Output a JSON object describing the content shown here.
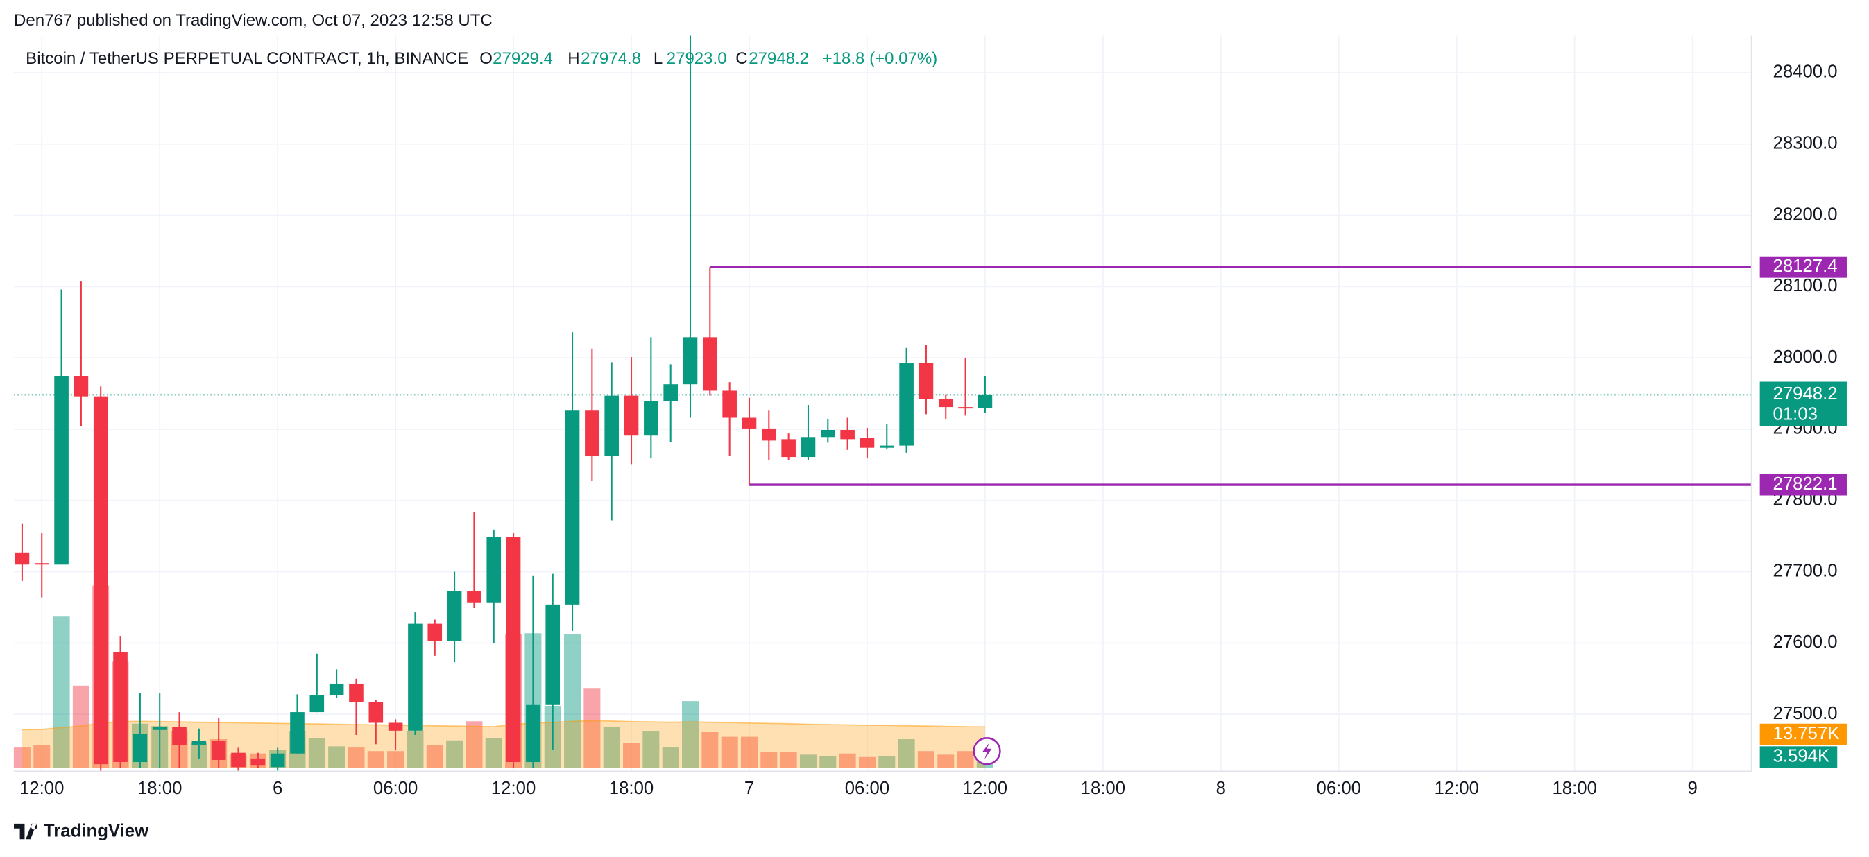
{
  "page": {
    "header": "Den767 published on TradingView.com, Oct 07, 2023 12:58 UTC",
    "footer": "TradingView"
  },
  "chart_data": {
    "type": "candlestick",
    "legend": {
      "symbol": "Bitcoin / TetherUS PERPETUAL CONTRACT, 1h, BINANCE",
      "items": [
        {
          "key": "O",
          "text": "27929.4"
        },
        {
          "key": "H",
          "text": "27974.8"
        },
        {
          "key": "L",
          "text": "27923.0"
        },
        {
          "key": "C",
          "text": "27948.2"
        }
      ],
      "change": "+18.8 (+0.07%)"
    },
    "up_color": "#089981",
    "down_color": "#f23645",
    "open": [
      27727,
      27712,
      27710,
      27974,
      27946,
      27587,
      27433,
      27478,
      27482,
      27457,
      27463,
      27446,
      27438,
      27426,
      27445,
      27503,
      27527,
      27543,
      27517,
      27488,
      27477,
      27627,
      27603,
      27673,
      27657,
      27749,
      27433,
      27513,
      27654,
      27926,
      27862,
      27947,
      27891,
      27939,
      27963,
      28029,
      27954,
      27916,
      27901,
      27886,
      27861,
      27889,
      27899,
      27888,
      27874,
      27877,
      27993,
      27942,
      27931,
      27929.4
    ],
    "high": [
      27767,
      27755,
      28096,
      28108,
      27960,
      27610,
      27530,
      27530,
      27503,
      27480,
      27495,
      27453,
      27446,
      27453,
      27528,
      27585,
      27563,
      27550,
      27520,
      27493,
      27643,
      27633,
      27700,
      27784,
      27759,
      27755,
      27694,
      27697,
      28036,
      28013,
      27994,
      28001,
      28029,
      27991,
      28452,
      28127.4,
      27966,
      27944,
      27926,
      27894,
      27934,
      27914,
      27916,
      27902,
      27907,
      28014,
      28018,
      27949,
      28000,
      27974.8
    ],
    "low": [
      27687,
      27664,
      27710,
      27904,
      27420,
      27425,
      27425,
      27425,
      27425,
      27438,
      27425,
      27420,
      27425,
      27421,
      27445,
      27503,
      27523,
      27471,
      27458,
      27450,
      27471,
      27582,
      27573,
      27649,
      27600,
      27425,
      27425,
      27450,
      27617,
      27827,
      27772,
      27851,
      27859,
      27882,
      27916,
      27947,
      27862,
      27822.1,
      27857,
      27857,
      27857,
      27881,
      27871,
      27859,
      27872,
      27867,
      27921,
      27914,
      27919,
      27923
    ],
    "close": [
      27710,
      27710,
      27974,
      27946,
      27430,
      27433,
      27472,
      27482,
      27457,
      27463,
      27436,
      27426,
      27428,
      27445,
      27503,
      27527,
      27543,
      27517,
      27488,
      27477,
      27627,
      27603,
      27673,
      27657,
      27749,
      27433,
      27513,
      27654,
      27926,
      27862,
      27947,
      27891,
      27939,
      27963,
      28029,
      27954,
      27916,
      27901,
      27884,
      27861,
      27889,
      27899,
      27886,
      27874,
      27877,
      27993,
      27942,
      27931,
      27929,
      27948.2
    ],
    "volume": [
      6800,
      7600,
      50800,
      27600,
      61200,
      35600,
      14800,
      14000,
      12400,
      8400,
      9600,
      4400,
      4800,
      6000,
      12400,
      10000,
      7200,
      6800,
      5600,
      5600,
      12400,
      7600,
      9200,
      15600,
      10000,
      44800,
      45200,
      20800,
      44800,
      26800,
      13600,
      8400,
      12400,
      6800,
      22400,
      12000,
      10400,
      10400,
      5200,
      5200,
      4400,
      4000,
      4800,
      3600,
      4000,
      9600,
      5600,
      4400,
      5600,
      3594
    ],
    "volume_ma": [
      12800,
      12900,
      13500,
      14000,
      15000,
      15500,
      15600,
      15500,
      15400,
      15300,
      15200,
      15100,
      15000,
      14900,
      14800,
      14700,
      14600,
      14500,
      14400,
      14300,
      14200,
      14100,
      14000,
      13900,
      13800,
      14500,
      15000,
      15200,
      15600,
      15800,
      15700,
      15500,
      15400,
      15300,
      15400,
      15300,
      15200,
      15000,
      14900,
      14800,
      14600,
      14500,
      14400,
      14300,
      14200,
      14100,
      14000,
      13900,
      13800,
      13757
    ],
    "volume_ma_color": "#ff9800",
    "volume_labels": {
      "ma": {
        "value": 13757,
        "label": "13.757K"
      },
      "last": {
        "value": 3594,
        "label": "3.594K"
      }
    },
    "last_price": 27948.2,
    "countdown": "01:03",
    "hlines": [
      {
        "value": 28127.4,
        "start": 35,
        "color": "#9c27b0"
      },
      {
        "value": 27822.1,
        "start": 37,
        "color": "#9c27b0"
      }
    ],
    "xlim": [
      -0.42,
      88
    ],
    "ylim": [
      27420,
      28452
    ],
    "xticks": [
      {
        "value": 1,
        "label": "12:00"
      },
      {
        "value": 7,
        "label": "18:00"
      },
      {
        "value": 13,
        "label": "6"
      },
      {
        "value": 19,
        "label": "06:00"
      },
      {
        "value": 25,
        "label": "12:00"
      },
      {
        "value": 31,
        "label": "18:00"
      },
      {
        "value": 37,
        "label": "7"
      },
      {
        "value": 43,
        "label": "06:00"
      },
      {
        "value": 49,
        "label": "12:00"
      },
      {
        "value": 55,
        "label": "18:00"
      },
      {
        "value": 61,
        "label": "8"
      },
      {
        "value": 67,
        "label": "06:00"
      },
      {
        "value": 73,
        "label": "12:00"
      },
      {
        "value": 79,
        "label": "18:00"
      },
      {
        "value": 85,
        "label": "9"
      }
    ],
    "yticks": [
      {
        "value": 27500,
        "label": "27500.0"
      },
      {
        "value": 27600,
        "label": "27600.0"
      },
      {
        "value": 27700,
        "label": "27700.0"
      },
      {
        "value": 27800,
        "label": "27800.0"
      },
      {
        "value": 27900,
        "label": "27900.0"
      },
      {
        "value": 28000,
        "label": "28000.0"
      },
      {
        "value": 28100,
        "label": "28100.0"
      },
      {
        "value": 28200,
        "label": "28200.0"
      },
      {
        "value": 28300,
        "label": "28300.0"
      },
      {
        "value": 28400,
        "label": "28400.0"
      }
    ],
    "grid": true
  }
}
